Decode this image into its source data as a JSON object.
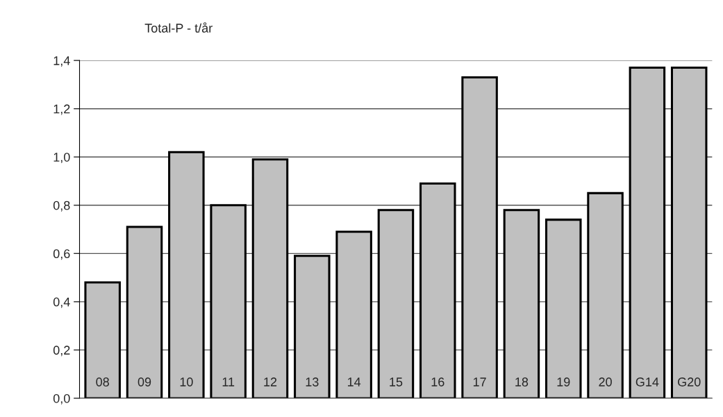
{
  "chart_data": {
    "type": "bar",
    "title": "Total-P - t/år",
    "categories": [
      "08",
      "09",
      "10",
      "11",
      "12",
      "13",
      "14",
      "15",
      "16",
      "17",
      "18",
      "19",
      "20",
      "G14",
      "G20"
    ],
    "values": [
      0.48,
      0.71,
      1.02,
      0.8,
      0.99,
      0.59,
      0.69,
      0.78,
      0.89,
      1.33,
      0.78,
      0.74,
      0.85,
      1.37,
      1.37
    ],
    "color": "#c0c0c0",
    "ylim": [
      0,
      1.4
    ],
    "yticks": [
      {
        "value": 0,
        "label": "0,0"
      },
      {
        "value": 0.2,
        "label": "0,2"
      },
      {
        "value": 0.4,
        "label": "0,4"
      },
      {
        "value": 0.6,
        "label": "0,6"
      },
      {
        "value": 0.8,
        "label": "0,8"
      },
      {
        "value": 1.0,
        "label": "1,0"
      },
      {
        "value": 1.2,
        "label": "1,2"
      },
      {
        "value": 1.4,
        "label": "1,4"
      }
    ],
    "grid": "y"
  }
}
